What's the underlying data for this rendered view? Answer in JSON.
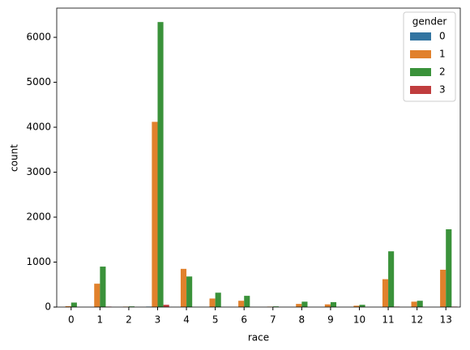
{
  "chart_data": {
    "type": "bar",
    "x_label": "race",
    "y_label": "count",
    "categories": [
      "0",
      "1",
      "2",
      "3",
      "4",
      "5",
      "6",
      "7",
      "8",
      "9",
      "10",
      "11",
      "12",
      "13"
    ],
    "legend_title": "gender",
    "legend_position": "upper right",
    "series": [
      {
        "name": "0",
        "color": "#3274a1",
        "values": [
          0,
          0,
          0,
          10,
          0,
          0,
          0,
          0,
          0,
          0,
          0,
          0,
          0,
          0
        ]
      },
      {
        "name": "1",
        "color": "#e1812c",
        "values": [
          20,
          520,
          10,
          4120,
          850,
          190,
          140,
          10,
          70,
          60,
          30,
          620,
          120,
          830
        ]
      },
      {
        "name": "2",
        "color": "#3a923a",
        "values": [
          100,
          900,
          15,
          6340,
          680,
          320,
          250,
          15,
          120,
          110,
          50,
          1240,
          140,
          1730
        ]
      },
      {
        "name": "3",
        "color": "#c03d3e",
        "values": [
          0,
          10,
          0,
          50,
          0,
          0,
          0,
          0,
          0,
          0,
          0,
          10,
          0,
          10
        ]
      }
    ],
    "ylim": [
      0,
      6650
    ],
    "yticks": [
      0,
      1000,
      2000,
      3000,
      4000,
      5000,
      6000
    ]
  }
}
